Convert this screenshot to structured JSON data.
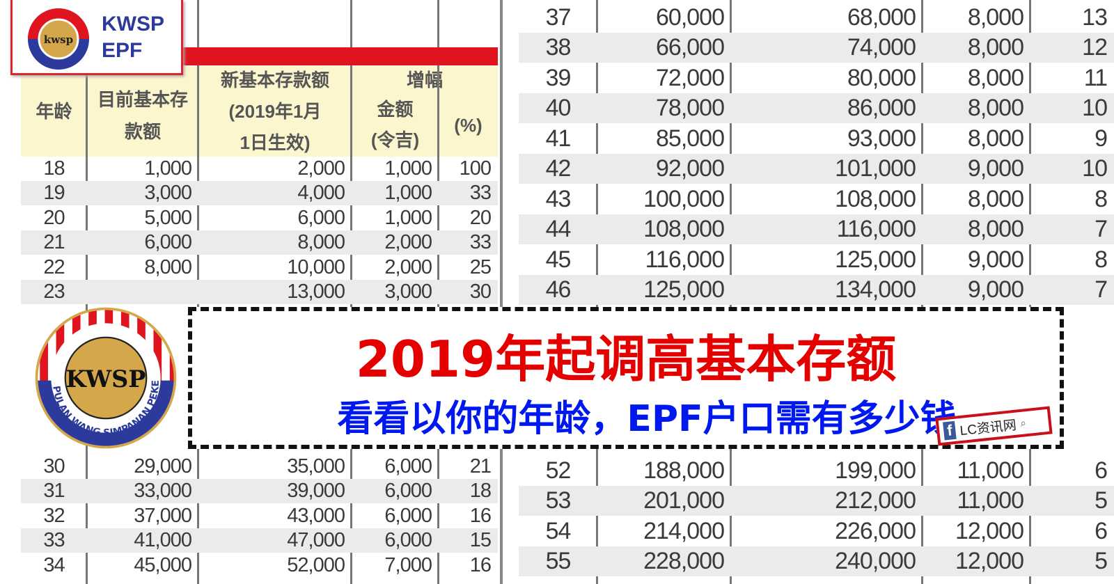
{
  "logo_small": {
    "line1": "KWSP",
    "line2": "EPF"
  },
  "left_table": {
    "headers": {
      "age": "年龄",
      "current": "目前基本存款额",
      "new_line1": "新基本存款额",
      "new_line2": "(2019年1月",
      "new_line3": "1日生效)",
      "increase": "增幅",
      "amount": "金额",
      "amount_unit": "(令吉)",
      "percent": "(%)"
    },
    "rows": [
      [
        "18",
        "1,000",
        "2,000",
        "1,000",
        "100"
      ],
      [
        "19",
        "3,000",
        "4,000",
        "1,000",
        "33"
      ],
      [
        "20",
        "5,000",
        "6,000",
        "1,000",
        "20"
      ],
      [
        "21",
        "6,000",
        "8,000",
        "2,000",
        "33"
      ],
      [
        "22",
        "8,000",
        "10,000",
        "2,000",
        "25"
      ],
      [
        "23",
        "",
        "13,000",
        "3,000",
        "30"
      ]
    ],
    "rows_bottom": [
      [
        "30",
        "29,000",
        "35,000",
        "6,000",
        "21"
      ],
      [
        "31",
        "33,000",
        "39,000",
        "6,000",
        "18"
      ],
      [
        "32",
        "37,000",
        "43,000",
        "6,000",
        "16"
      ],
      [
        "33",
        "41,000",
        "47,000",
        "6,000",
        "15"
      ],
      [
        "34",
        "45,000",
        "52,000",
        "7,000",
        "16"
      ]
    ]
  },
  "right_table": {
    "rows": [
      [
        "37",
        "60,000",
        "68,000",
        "8,000",
        "13"
      ],
      [
        "38",
        "66,000",
        "74,000",
        "8,000",
        "12"
      ],
      [
        "39",
        "72,000",
        "80,000",
        "8,000",
        "11"
      ],
      [
        "40",
        "78,000",
        "86,000",
        "8,000",
        "10"
      ],
      [
        "41",
        "85,000",
        "93,000",
        "8,000",
        "9"
      ],
      [
        "42",
        "92,000",
        "101,000",
        "9,000",
        "10"
      ],
      [
        "43",
        "100,000",
        "108,000",
        "8,000",
        "8"
      ],
      [
        "44",
        "108,000",
        "116,000",
        "8,000",
        "7"
      ],
      [
        "45",
        "116,000",
        "125,000",
        "9,000",
        "8"
      ],
      [
        "46",
        "125,000",
        "134,000",
        "9,000",
        "7"
      ]
    ],
    "rows_bottom": [
      [
        "52",
        "188,000",
        "199,000",
        "11,000",
        "6"
      ],
      [
        "53",
        "201,000",
        "212,000",
        "11,000",
        "5"
      ],
      [
        "54",
        "214,000",
        "226,000",
        "12,000",
        "6"
      ],
      [
        "55",
        "228,000",
        "240,000",
        "12,000",
        "5"
      ]
    ]
  },
  "overlay": {
    "title": "2019年起调高基本存额",
    "subtitle": "看看以你的年龄，EPF户口需有多少钱"
  },
  "big_logo": {
    "ring_text": "KUMPULAN WANG SIMPANAN PEKERJA",
    "emblem": "KWSP"
  },
  "watermark": {
    "icon": "facebook-icon",
    "label": "LC资讯网",
    "search_icon": "search-icon"
  },
  "colors": {
    "title_red": "#e50000",
    "subtitle_blue": "#0018f0",
    "header_yellow": "#fcf6cf",
    "epf_red": "#e0141e",
    "epf_blue": "#2b3a9b",
    "epf_gold": "#d4a84a"
  }
}
